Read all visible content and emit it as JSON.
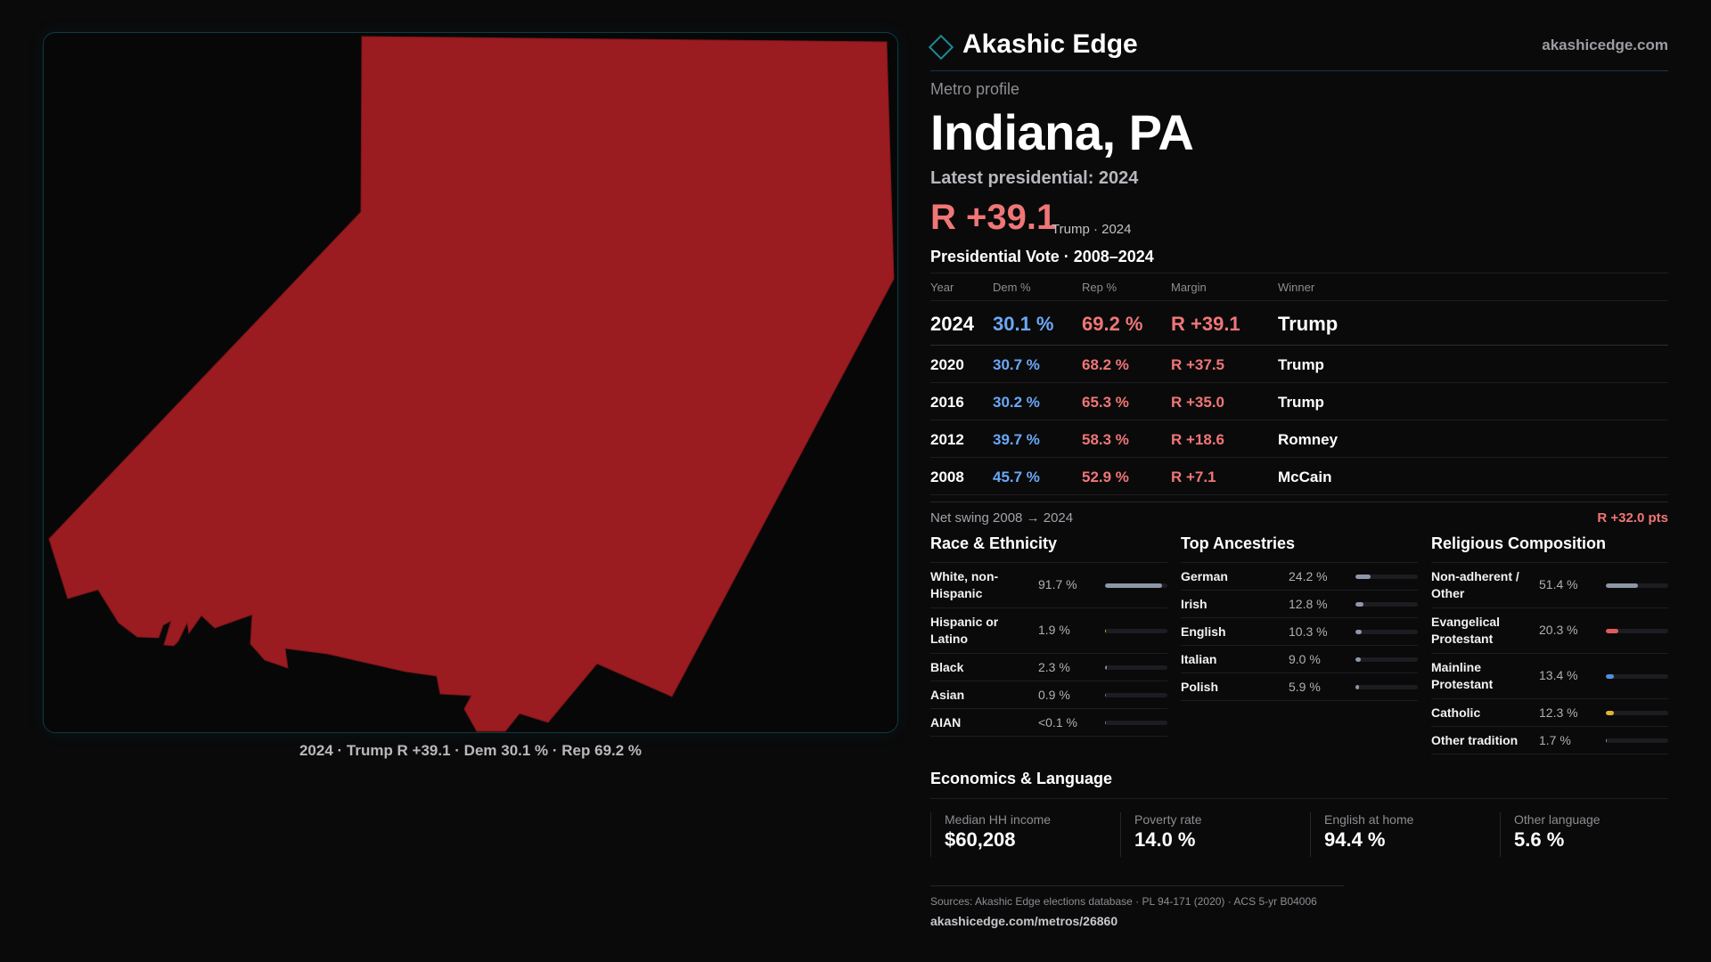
{
  "brand": "Akashic Edge",
  "site": "akashicedge.com",
  "kicker": "Metro profile",
  "title": "Indiana, PA",
  "latest_label": "Latest presidential: 2024",
  "headline_margin": "R +39.1",
  "headline_sub": "Trump · 2024",
  "map": {
    "fill_color": "#9a1c20",
    "caption": "2024 · Trump R +39.1 · Dem 30.1 % · Rep 69.2 %"
  },
  "vote_table": {
    "title": "Presidential Vote · 2008–2024",
    "headers": [
      "Year",
      "Dem %",
      "Rep %",
      "Margin",
      "Winner"
    ],
    "rows": [
      {
        "year": "2024",
        "dem": "30.1 %",
        "rep": "69.2 %",
        "margin": "R +39.1",
        "winner": "Trump"
      },
      {
        "year": "2020",
        "dem": "30.7 %",
        "rep": "68.2 %",
        "margin": "R +37.5",
        "winner": "Trump"
      },
      {
        "year": "2016",
        "dem": "30.2 %",
        "rep": "65.3 %",
        "margin": "R +35.0",
        "winner": "Trump"
      },
      {
        "year": "2012",
        "dem": "39.7 %",
        "rep": "58.3 %",
        "margin": "R +18.6",
        "winner": "Romney"
      },
      {
        "year": "2008",
        "dem": "45.7 %",
        "rep": "52.9 %",
        "margin": "R +7.1",
        "winner": "McCain"
      }
    ]
  },
  "swing": {
    "label": "Net swing 2008 → 2024",
    "value": "R +32.0 pts"
  },
  "race": {
    "title": "Race & Ethnicity",
    "items": [
      {
        "label": "White, non-Hispanic",
        "pct": "91.7 %",
        "value": 91.7,
        "color": "#8e97a8"
      },
      {
        "label": "Hispanic or Latino",
        "pct": "1.9 %",
        "value": 1.9,
        "color": "#e0a72c"
      },
      {
        "label": "Black",
        "pct": "2.3 %",
        "value": 2.3,
        "color": "#7f8fb8"
      },
      {
        "label": "Asian",
        "pct": "0.9 %",
        "value": 0.9,
        "color": "#6d7a8c"
      },
      {
        "label": "AIAN",
        "pct": "<0.1 %",
        "value": 0.05,
        "color": "#6d7a8c"
      }
    ]
  },
  "ancestry": {
    "title": "Top Ancestries",
    "items": [
      {
        "label": "German",
        "pct": "24.2 %",
        "value": 24.2,
        "color": "#8e97a8"
      },
      {
        "label": "Irish",
        "pct": "12.8 %",
        "value": 12.8,
        "color": "#8e97a8"
      },
      {
        "label": "English",
        "pct": "10.3 %",
        "value": 10.3,
        "color": "#8e97a8"
      },
      {
        "label": "Italian",
        "pct": "9.0 %",
        "value": 9.0,
        "color": "#8e97a8"
      },
      {
        "label": "Polish",
        "pct": "5.9 %",
        "value": 5.9,
        "color": "#8e97a8"
      }
    ]
  },
  "religion": {
    "title": "Religious Composition",
    "items": [
      {
        "label": "Non-adherent / Other",
        "pct": "51.4 %",
        "value": 51.4,
        "color": "#8e97a8"
      },
      {
        "label": "Evangelical Protestant",
        "pct": "20.3 %",
        "value": 20.3,
        "color": "#e25b5b"
      },
      {
        "label": "Mainline Protestant",
        "pct": "13.4 %",
        "value": 13.4,
        "color": "#4f8fe0"
      },
      {
        "label": "Catholic",
        "pct": "12.3 %",
        "value": 12.3,
        "color": "#e0b52c"
      },
      {
        "label": "Other tradition",
        "pct": "1.7 %",
        "value": 1.7,
        "color": "#8e97a8"
      }
    ]
  },
  "economics": {
    "title": "Economics & Language",
    "items": [
      {
        "label": "Median HH income",
        "value": "$60,208"
      },
      {
        "label": "Poverty rate",
        "value": "14.0 %"
      },
      {
        "label": "English at home",
        "value": "94.4 %"
      },
      {
        "label": "Other language",
        "value": "5.6 %"
      }
    ]
  },
  "footer": {
    "sources": "Sources: Akashic Edge elections database · PL 94-171 (2020) · ACS 5-yr B04006",
    "url": "akashicedge.com/metros/26860"
  }
}
